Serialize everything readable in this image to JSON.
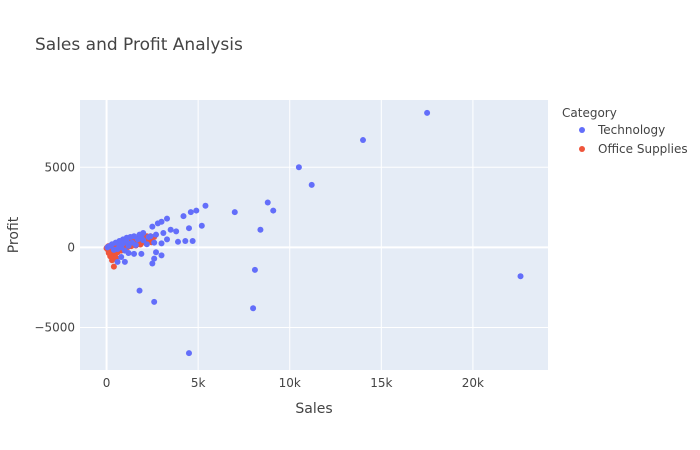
{
  "chart_data": {
    "type": "scatter",
    "title": "Sales and Profit Analysis",
    "xlabel": "Sales",
    "ylabel": "Profit",
    "xlim": [
      -1450,
      24100
    ],
    "ylim": [
      -7650,
      9200
    ],
    "x_ticks": [
      0,
      5000,
      10000,
      15000,
      20000
    ],
    "x_tick_labels": [
      "0",
      "5k",
      "10k",
      "15k",
      "20k"
    ],
    "y_ticks": [
      -5000,
      0,
      5000
    ],
    "y_tick_labels": [
      "−5000",
      "0",
      "5000"
    ],
    "grid": true,
    "legend": {
      "title": "Category",
      "placement": "top-right"
    },
    "colors": {
      "plot_bg": "#e5ecf6",
      "grid": "#ffffff",
      "paper_bg": "#ffffff"
    },
    "series": [
      {
        "name": "Technology",
        "color": "#636efa",
        "points": [
          [
            17500,
            8400
          ],
          [
            14000,
            6700
          ],
          [
            10500,
            5000
          ],
          [
            11200,
            3900
          ],
          [
            8800,
            2800
          ],
          [
            9100,
            2300
          ],
          [
            7000,
            2200
          ],
          [
            5400,
            2600
          ],
          [
            4900,
            2300
          ],
          [
            4600,
            2200
          ],
          [
            4200,
            1950
          ],
          [
            5200,
            1350
          ],
          [
            8400,
            1100
          ],
          [
            3300,
            1800
          ],
          [
            3000,
            1600
          ],
          [
            2800,
            1500
          ],
          [
            2500,
            1300
          ],
          [
            3500,
            1100
          ],
          [
            4500,
            1200
          ],
          [
            3800,
            1000
          ],
          [
            2000,
            900
          ],
          [
            1800,
            800
          ],
          [
            1500,
            700
          ],
          [
            1300,
            650
          ],
          [
            1100,
            600
          ],
          [
            900,
            500
          ],
          [
            700,
            400
          ],
          [
            500,
            300
          ],
          [
            300,
            200
          ],
          [
            200,
            100
          ],
          [
            100,
            50
          ],
          [
            50,
            0
          ],
          [
            3300,
            500
          ],
          [
            2600,
            300
          ],
          [
            4300,
            400
          ],
          [
            4700,
            400
          ],
          [
            3900,
            350
          ],
          [
            3000,
            250
          ],
          [
            2200,
            200
          ],
          [
            1600,
            150
          ],
          [
            1200,
            100
          ],
          [
            800,
            0
          ],
          [
            600,
            -100
          ],
          [
            400,
            -150
          ],
          [
            1000,
            -200
          ],
          [
            1500,
            -400
          ],
          [
            2700,
            -300
          ],
          [
            1900,
            -400
          ],
          [
            800,
            -600
          ],
          [
            600,
            -900
          ],
          [
            2600,
            -700
          ],
          [
            2500,
            -1000
          ],
          [
            1000,
            -900
          ],
          [
            3000,
            -500
          ],
          [
            1200,
            -350
          ],
          [
            8100,
            -1400
          ],
          [
            22600,
            -1800
          ],
          [
            1800,
            -2700
          ],
          [
            2600,
            -3400
          ],
          [
            8000,
            -3800
          ],
          [
            4500,
            -6600
          ],
          [
            2300,
            650
          ],
          [
            2700,
            800
          ],
          [
            3100,
            900
          ],
          [
            1400,
            300
          ],
          [
            2000,
            450
          ],
          [
            1700,
            500
          ],
          [
            900,
            250
          ],
          [
            700,
            150
          ],
          [
            1100,
            350
          ],
          [
            1900,
            600
          ],
          [
            2400,
            700
          ]
        ]
      },
      {
        "name": "Office Supplies",
        "color": "#ef553b",
        "points": [
          [
            0,
            -50
          ],
          [
            50,
            -100
          ],
          [
            100,
            -200
          ],
          [
            150,
            0
          ],
          [
            200,
            50
          ],
          [
            250,
            -300
          ],
          [
            300,
            -400
          ],
          [
            350,
            100
          ],
          [
            400,
            150
          ],
          [
            450,
            -500
          ],
          [
            500,
            200
          ],
          [
            550,
            250
          ],
          [
            600,
            100
          ],
          [
            650,
            -150
          ],
          [
            700,
            300
          ],
          [
            800,
            350
          ],
          [
            900,
            150
          ],
          [
            1000,
            400
          ],
          [
            1100,
            200
          ],
          [
            1200,
            450
          ],
          [
            1300,
            300
          ],
          [
            1400,
            500
          ],
          [
            1500,
            350
          ],
          [
            1600,
            550
          ],
          [
            1700,
            400
          ],
          [
            1800,
            600
          ],
          [
            1900,
            450
          ],
          [
            2000,
            650
          ],
          [
            2100,
            500
          ],
          [
            2200,
            700
          ],
          [
            2300,
            550
          ],
          [
            2400,
            700
          ],
          [
            2500,
            600
          ],
          [
            2600,
            650
          ],
          [
            400,
            -1200
          ],
          [
            300,
            -800
          ],
          [
            200,
            -550
          ],
          [
            600,
            -300
          ],
          [
            800,
            -200
          ],
          [
            100,
            80
          ],
          [
            250,
            120
          ],
          [
            350,
            -80
          ],
          [
            450,
            60
          ],
          [
            700,
            -60
          ],
          [
            950,
            -40
          ],
          [
            1150,
            20
          ],
          [
            1350,
            80
          ],
          [
            1600,
            120
          ],
          [
            1850,
            180
          ],
          [
            2150,
            260
          ],
          [
            2450,
            320
          ],
          [
            120,
            -350
          ],
          [
            520,
            -650
          ],
          [
            60,
            30
          ],
          [
            30,
            -20
          ]
        ]
      }
    ]
  }
}
